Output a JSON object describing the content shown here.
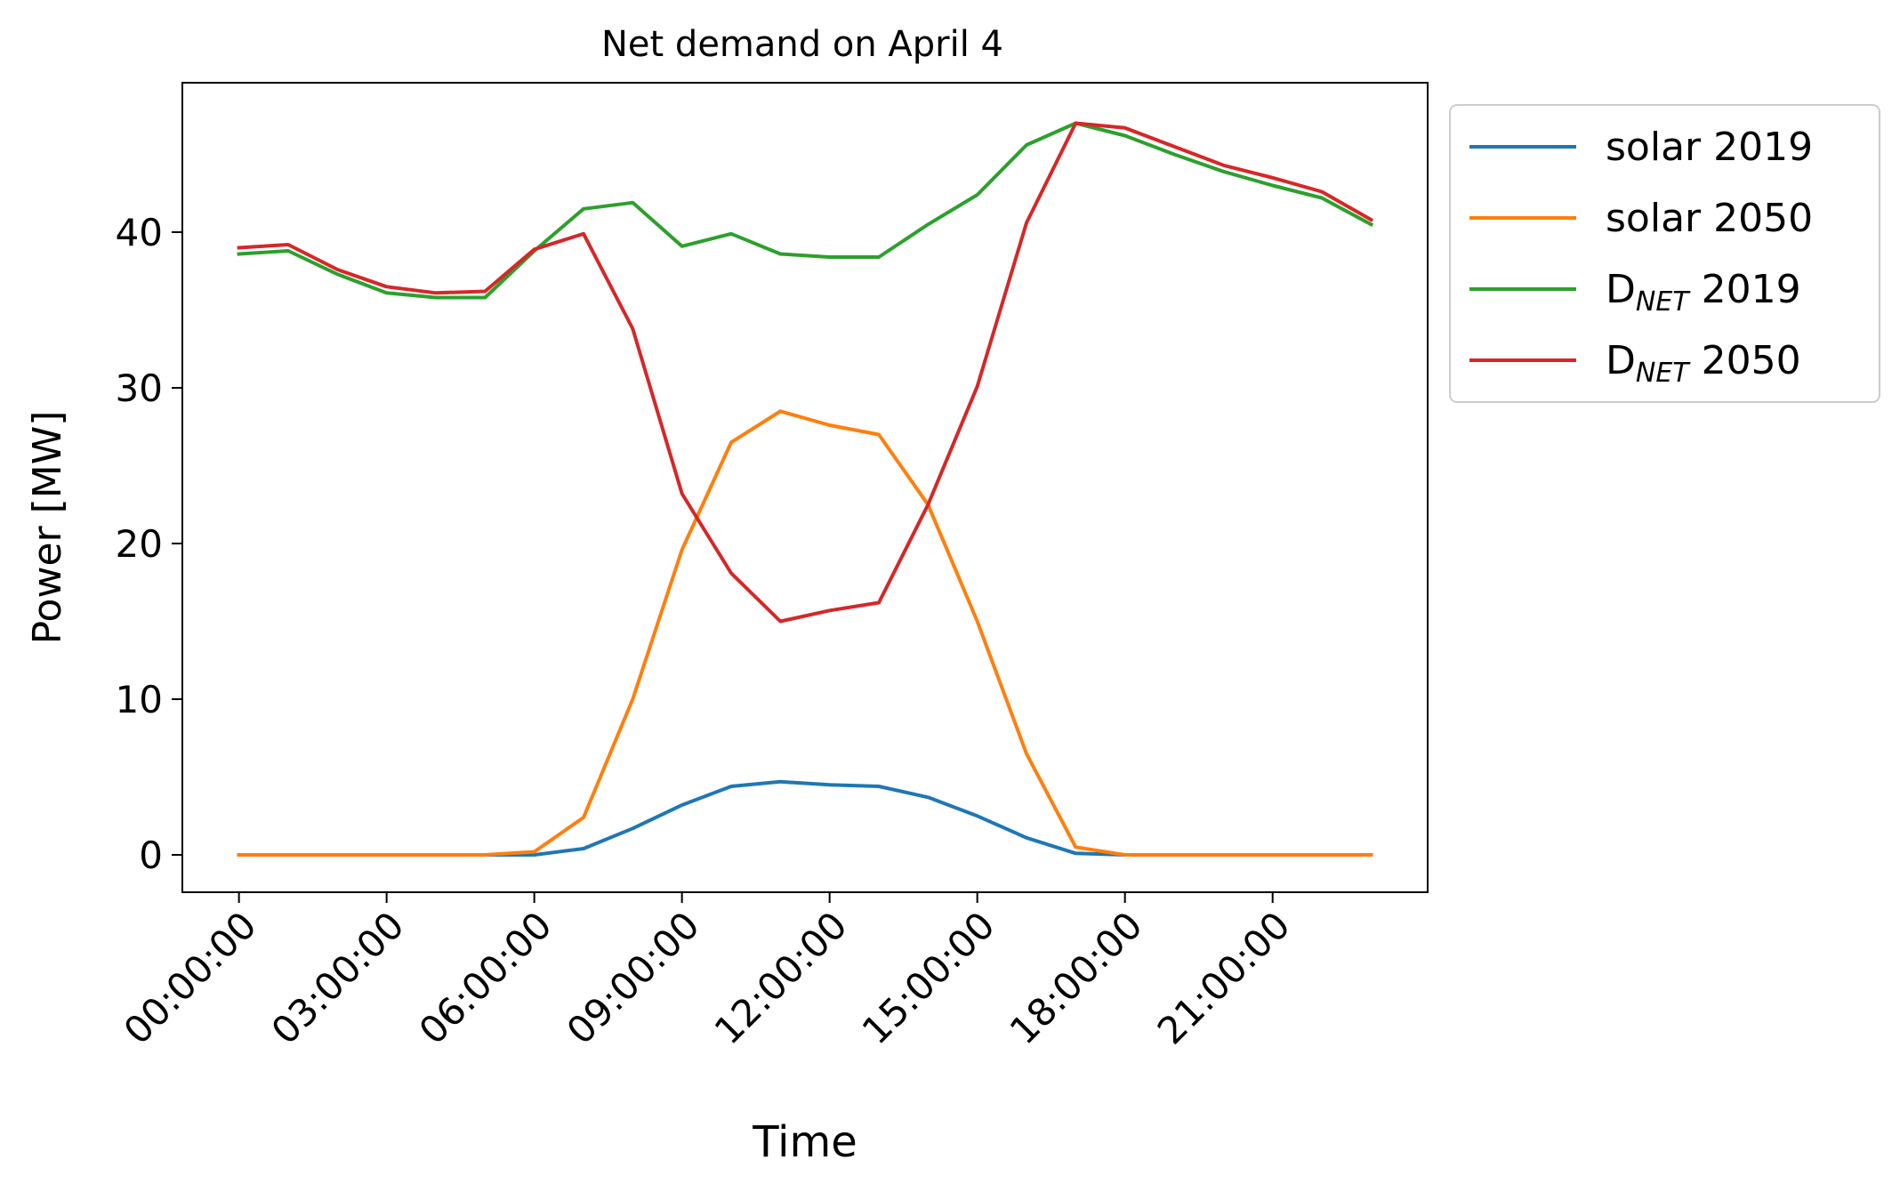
{
  "chart_data": {
    "type": "line",
    "title": "Net demand on April 4",
    "xlabel": "Time",
    "ylabel": "Power [MW]",
    "x": [
      0,
      1,
      2,
      3,
      4,
      5,
      6,
      7,
      8,
      9,
      10,
      11,
      12,
      13,
      14,
      15,
      16,
      17,
      18,
      19,
      20,
      21,
      22,
      23
    ],
    "xticks": [
      0,
      3,
      6,
      9,
      12,
      15,
      18,
      21
    ],
    "xtick_labels": [
      "00:00:00",
      "03:00:00",
      "06:00:00",
      "09:00:00",
      "12:00:00",
      "15:00:00",
      "18:00:00",
      "21:00:00"
    ],
    "yticks": [
      0,
      10,
      20,
      30,
      40
    ],
    "ytick_labels": [
      "0",
      "10",
      "20",
      "30",
      "40"
    ],
    "xlim": [
      -1.15,
      24.15
    ],
    "ylim": [
      -2.4,
      49.6
    ],
    "grid": false,
    "legend": "outside-upper-right",
    "series": [
      {
        "name": "solar 2019",
        "label_main": "solar 2019",
        "label_sub": "",
        "label_rest": "",
        "color": "#1f77b4",
        "values": [
          0,
          0,
          0,
          0,
          0,
          0,
          0,
          0.4,
          1.7,
          3.2,
          4.4,
          4.7,
          4.5,
          4.4,
          3.7,
          2.5,
          1.1,
          0.1,
          0,
          0,
          0,
          0,
          0,
          0
        ]
      },
      {
        "name": "solar 2050",
        "label_main": "solar 2050",
        "label_sub": "",
        "label_rest": "",
        "color": "#ff7f0e",
        "values": [
          0,
          0,
          0,
          0,
          0,
          0,
          0.2,
          2.4,
          10.0,
          19.6,
          26.5,
          28.5,
          27.6,
          27.0,
          22.5,
          15.0,
          6.5,
          0.5,
          0,
          0,
          0,
          0,
          0,
          0
        ]
      },
      {
        "name": "D_NET 2019",
        "label_main": "D",
        "label_sub": "NET",
        "label_rest": " 2019",
        "color": "#2ca02c",
        "values": [
          38.6,
          38.8,
          37.3,
          36.1,
          35.8,
          35.8,
          38.8,
          41.5,
          41.9,
          39.1,
          39.9,
          38.6,
          38.4,
          38.4,
          40.5,
          42.4,
          45.6,
          47.0,
          46.2,
          45.0,
          43.9,
          43.0,
          42.2,
          40.5
        ]
      },
      {
        "name": "D_NET 2050",
        "label_main": "D",
        "label_sub": "NET",
        "label_rest": " 2050",
        "color": "#d62728",
        "values": [
          39.0,
          39.2,
          37.6,
          36.5,
          36.1,
          36.2,
          38.9,
          39.9,
          33.8,
          23.2,
          18.1,
          15.0,
          15.7,
          16.2,
          22.5,
          30.1,
          40.6,
          47.0,
          46.7,
          45.5,
          44.3,
          43.5,
          42.6,
          40.8
        ]
      }
    ]
  }
}
